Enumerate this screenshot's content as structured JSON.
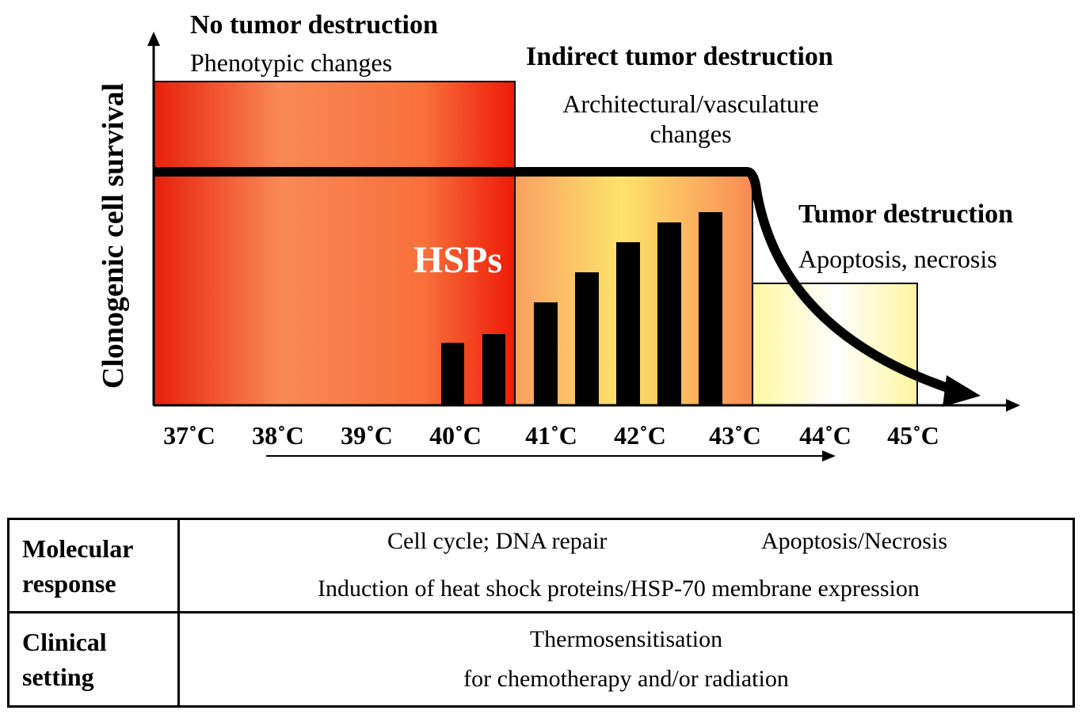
{
  "diagram": {
    "y_axis_label": "Clonogenic cell survival",
    "hsp_label": "HSPs",
    "zones": [
      {
        "title": "No tumor destruction",
        "subtitle": [
          "Phenotypic changes"
        ]
      },
      {
        "title": "Indirect tumor destruction",
        "subtitle": [
          "Architectural/vasculature",
          "changes"
        ]
      },
      {
        "title": "Tumor destruction",
        "subtitle": [
          "Apoptosis, necrosis"
        ]
      }
    ],
    "temperatures": [
      "37˚C",
      "38˚C",
      "39˚C",
      "40˚C",
      "41˚C",
      "42˚C",
      "43˚C",
      "44˚C",
      "45˚C"
    ],
    "colors": {
      "red": "#e81c0c",
      "orange": "#f8955a",
      "yellow": "#fffcb0"
    }
  },
  "table": {
    "rows": [
      {
        "header": [
          "Molecular",
          "response"
        ],
        "items": [
          "Cell cycle; DNA repair",
          "Apoptosis/Necrosis",
          "Induction of heat shock proteins/HSP-70 membrane expression"
        ]
      },
      {
        "header": [
          "Clinical",
          "setting"
        ],
        "items": [
          "Thermosensitisation",
          "for chemotherapy and/or radiation"
        ]
      }
    ]
  }
}
